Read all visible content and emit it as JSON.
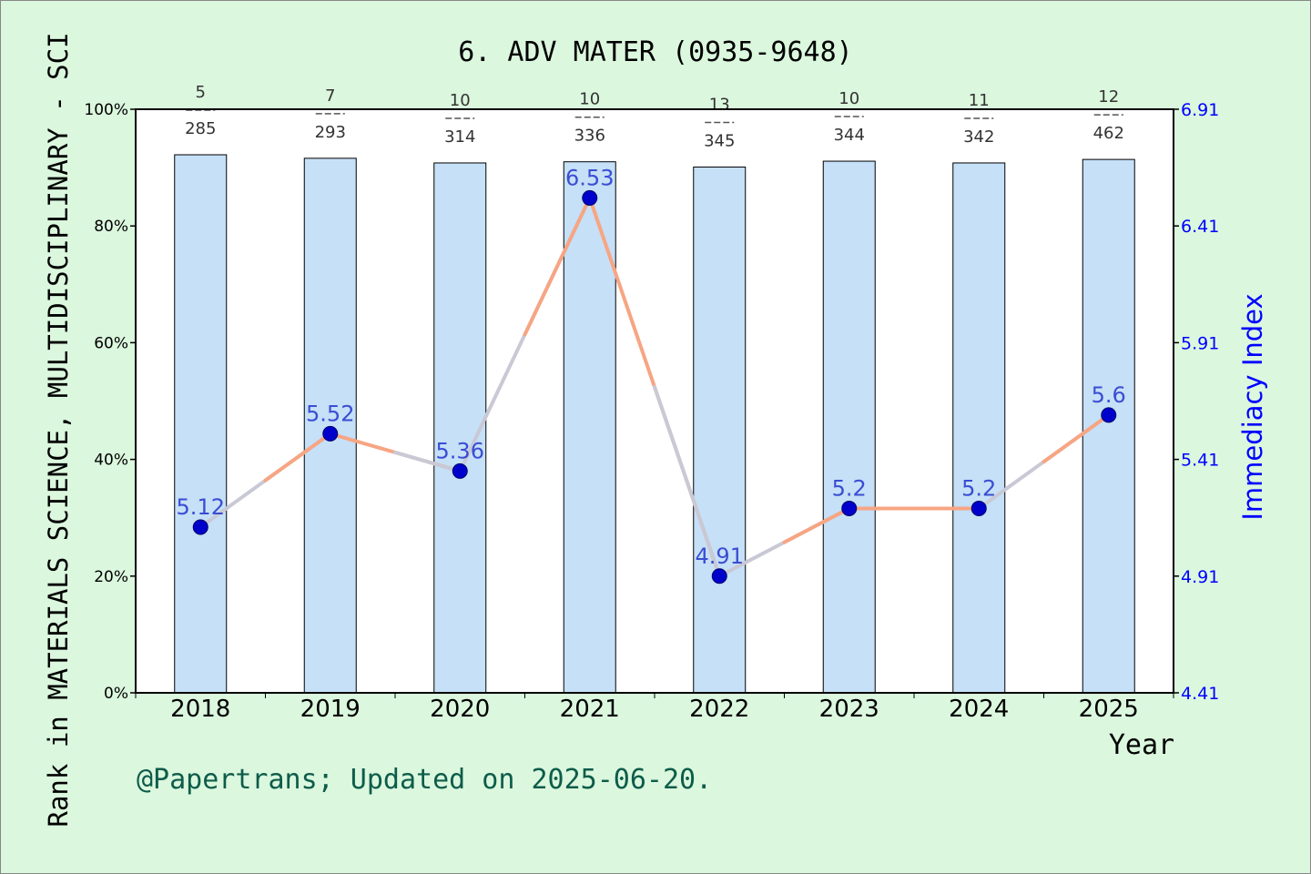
{
  "chart_data": {
    "type": "bar",
    "title": "6. ADV MATER (0935-9648)",
    "xlabel": "Year",
    "ylabel": "Rank in MATERIALS SCIENCE, MULTIDISCIPLINARY - SCI",
    "y2label": "Immediacy Index",
    "categories": [
      "2018",
      "2019",
      "2020",
      "2021",
      "2022",
      "2023",
      "2024",
      "2025"
    ],
    "ylim": [
      0,
      100
    ],
    "yticks": [
      "0%",
      "20%",
      "40%",
      "60%",
      "80%",
      "100%"
    ],
    "y2lim": [
      4.41,
      6.91
    ],
    "y2ticks": [
      "4.41",
      "4.91",
      "5.41",
      "5.91",
      "6.41",
      "6.91"
    ],
    "rank": [
      5,
      7,
      10,
      10,
      13,
      10,
      11,
      12
    ],
    "total": [
      285,
      293,
      314,
      336,
      345,
      344,
      342,
      462
    ],
    "bar_percent": [
      92.2,
      91.6,
      90.8,
      91.0,
      90.1,
      91.1,
      90.8,
      91.4
    ],
    "immediacy_index": [
      5.12,
      5.52,
      5.36,
      6.53,
      4.91,
      5.2,
      5.2,
      5.6
    ],
    "point_labels": [
      "5.12",
      "5.52",
      "5.36",
      "6.53",
      "4.91",
      "5.2",
      "5.2",
      "5.6"
    ],
    "grid": false,
    "colors": {
      "background": "#dbf7de",
      "bar_fill": "#c5e0f7",
      "line_rise": "#f7a583",
      "line_fall": "#c9c9d6",
      "point": "#0000cc",
      "right_axis": "#0000ff",
      "footer": "#0d5c4a"
    }
  },
  "footer": "@Papertrans; Updated on 2025-06-20."
}
